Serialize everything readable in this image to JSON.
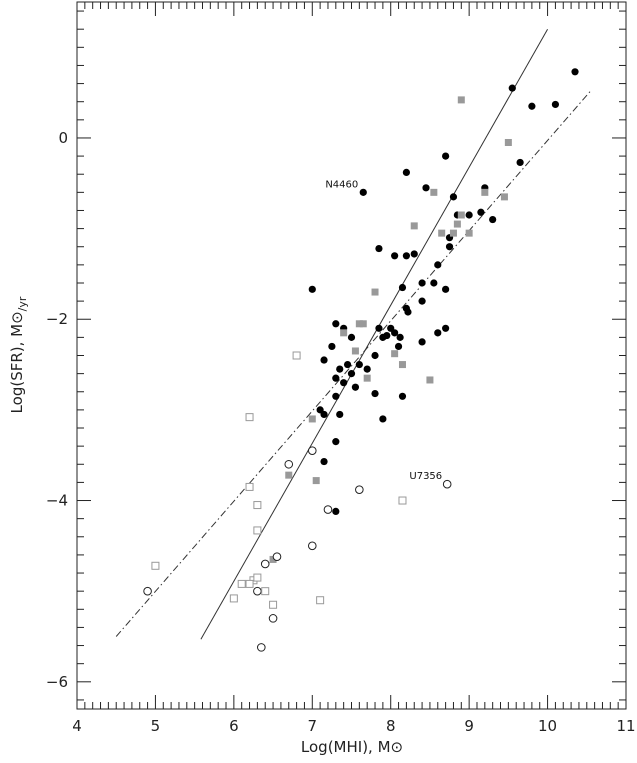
{
  "chart_data": {
    "type": "scatter",
    "xlabel": "Log(MHI), M⊙",
    "ylabel_main": "Log(SFR), M⊙",
    "ylabel_sub": "/yr",
    "xlim": [
      4,
      11
    ],
    "ylim": [
      -6.3,
      1.5
    ],
    "x_ticks": [
      4,
      5,
      6,
      7,
      8,
      9,
      10,
      11
    ],
    "x_tick_labels": [
      "4",
      "5",
      "6",
      "7",
      "8",
      "9",
      "10",
      "11"
    ],
    "y_ticks": [
      0,
      -2,
      -4,
      -6
    ],
    "y_tick_labels": [
      "0",
      "−2",
      "−4",
      "−6"
    ],
    "grid": false,
    "colors": {
      "filled_circle": "#000000",
      "gray_square": "#999999",
      "open_marker_stroke": "#222222",
      "open_square_stroke": "#999999",
      "line": "#333333"
    },
    "annotations": [
      {
        "text": "N4460",
        "x": 7.65,
        "y": -0.6
      },
      {
        "text": "U7356",
        "x": 8.72,
        "y": -3.82
      }
    ],
    "series": [
      {
        "marker": "filled-circle",
        "points": [
          [
            7.65,
            -0.6
          ],
          [
            8.2,
            -0.38
          ],
          [
            8.45,
            -0.55
          ],
          [
            8.7,
            -0.2
          ],
          [
            8.8,
            -0.65
          ],
          [
            8.85,
            -0.85
          ],
          [
            9.0,
            -0.85
          ],
          [
            9.15,
            -0.82
          ],
          [
            9.3,
            -0.9
          ],
          [
            9.55,
            0.55
          ],
          [
            9.8,
            0.35
          ],
          [
            10.1,
            0.37
          ],
          [
            10.35,
            0.73
          ],
          [
            9.65,
            -0.27
          ],
          [
            9.2,
            -0.55
          ],
          [
            8.2,
            -1.3
          ],
          [
            8.05,
            -1.3
          ],
          [
            7.85,
            -1.22
          ],
          [
            8.3,
            -1.28
          ],
          [
            8.6,
            -1.4
          ],
          [
            8.75,
            -1.1
          ],
          [
            8.75,
            -1.2
          ],
          [
            8.4,
            -1.6
          ],
          [
            8.55,
            -1.6
          ],
          [
            8.7,
            -1.67
          ],
          [
            8.15,
            -1.65
          ],
          [
            8.2,
            -1.88
          ],
          [
            8.22,
            -1.92
          ],
          [
            8.4,
            -1.8
          ],
          [
            7.0,
            -1.67
          ],
          [
            8.0,
            -2.1
          ],
          [
            7.85,
            -2.1
          ],
          [
            7.95,
            -2.18
          ],
          [
            8.05,
            -2.15
          ],
          [
            8.12,
            -2.2
          ],
          [
            8.1,
            -2.3
          ],
          [
            7.9,
            -2.2
          ],
          [
            7.3,
            -2.05
          ],
          [
            7.4,
            -2.1
          ],
          [
            7.5,
            -2.2
          ],
          [
            7.25,
            -2.3
          ],
          [
            7.15,
            -2.45
          ],
          [
            7.35,
            -2.55
          ],
          [
            7.45,
            -2.5
          ],
          [
            7.5,
            -2.6
          ],
          [
            7.6,
            -2.5
          ],
          [
            7.7,
            -2.55
          ],
          [
            7.8,
            -2.4
          ],
          [
            8.4,
            -2.25
          ],
          [
            8.7,
            -2.1
          ],
          [
            8.6,
            -2.15
          ],
          [
            7.3,
            -2.65
          ],
          [
            7.4,
            -2.7
          ],
          [
            7.55,
            -2.75
          ],
          [
            7.3,
            -2.85
          ],
          [
            7.8,
            -2.82
          ],
          [
            8.15,
            -2.85
          ],
          [
            7.1,
            -3.0
          ],
          [
            7.15,
            -3.05
          ],
          [
            7.35,
            -3.05
          ],
          [
            7.9,
            -3.1
          ],
          [
            7.3,
            -3.35
          ],
          [
            7.15,
            -3.57
          ],
          [
            7.3,
            -4.12
          ]
        ]
      },
      {
        "marker": "gray-square",
        "points": [
          [
            8.9,
            0.42
          ],
          [
            9.5,
            -0.05
          ],
          [
            9.45,
            -0.65
          ],
          [
            9.2,
            -0.6
          ],
          [
            8.55,
            -0.6
          ],
          [
            8.9,
            -0.85
          ],
          [
            8.85,
            -0.95
          ],
          [
            8.65,
            -1.05
          ],
          [
            8.8,
            -1.05
          ],
          [
            9.0,
            -1.05
          ],
          [
            8.3,
            -0.97
          ],
          [
            7.8,
            -1.7
          ],
          [
            7.6,
            -2.05
          ],
          [
            7.65,
            -2.05
          ],
          [
            7.4,
            -2.15
          ],
          [
            7.55,
            -2.35
          ],
          [
            7.7,
            -2.65
          ],
          [
            8.05,
            -2.38
          ],
          [
            8.15,
            -2.5
          ],
          [
            8.5,
            -2.67
          ],
          [
            7.0,
            -3.1
          ],
          [
            6.7,
            -3.72
          ],
          [
            7.05,
            -3.78
          ],
          [
            6.5,
            -4.65
          ]
        ]
      },
      {
        "marker": "open-circle",
        "points": [
          [
            7.0,
            -3.45
          ],
          [
            6.7,
            -3.6
          ],
          [
            7.6,
            -3.88
          ],
          [
            8.72,
            -3.82
          ],
          [
            7.2,
            -4.1
          ],
          [
            7.0,
            -4.5
          ],
          [
            6.55,
            -4.62
          ],
          [
            6.4,
            -4.7
          ],
          [
            6.3,
            -5.0
          ],
          [
            4.9,
            -5.0
          ],
          [
            6.5,
            -5.3
          ],
          [
            6.35,
            -5.62
          ]
        ]
      },
      {
        "marker": "open-square",
        "points": [
          [
            6.8,
            -2.4
          ],
          [
            6.2,
            -3.08
          ],
          [
            6.2,
            -3.85
          ],
          [
            6.3,
            -4.05
          ],
          [
            8.15,
            -4.0
          ],
          [
            6.3,
            -4.33
          ],
          [
            5.0,
            -4.72
          ],
          [
            6.25,
            -4.88
          ],
          [
            6.3,
            -4.85
          ],
          [
            6.1,
            -4.92
          ],
          [
            6.2,
            -4.92
          ],
          [
            6.4,
            -5.0
          ],
          [
            6.0,
            -5.08
          ],
          [
            7.1,
            -5.1
          ],
          [
            6.5,
            -5.15
          ]
        ]
      }
    ],
    "lines": [
      {
        "style": "solid",
        "x": [
          5.58,
          10.0
        ],
        "y": [
          -5.53,
          1.2
        ]
      },
      {
        "style": "dash-dot",
        "x": [
          4.5,
          10.55
        ],
        "y": [
          -5.5,
          0.52
        ]
      }
    ]
  }
}
